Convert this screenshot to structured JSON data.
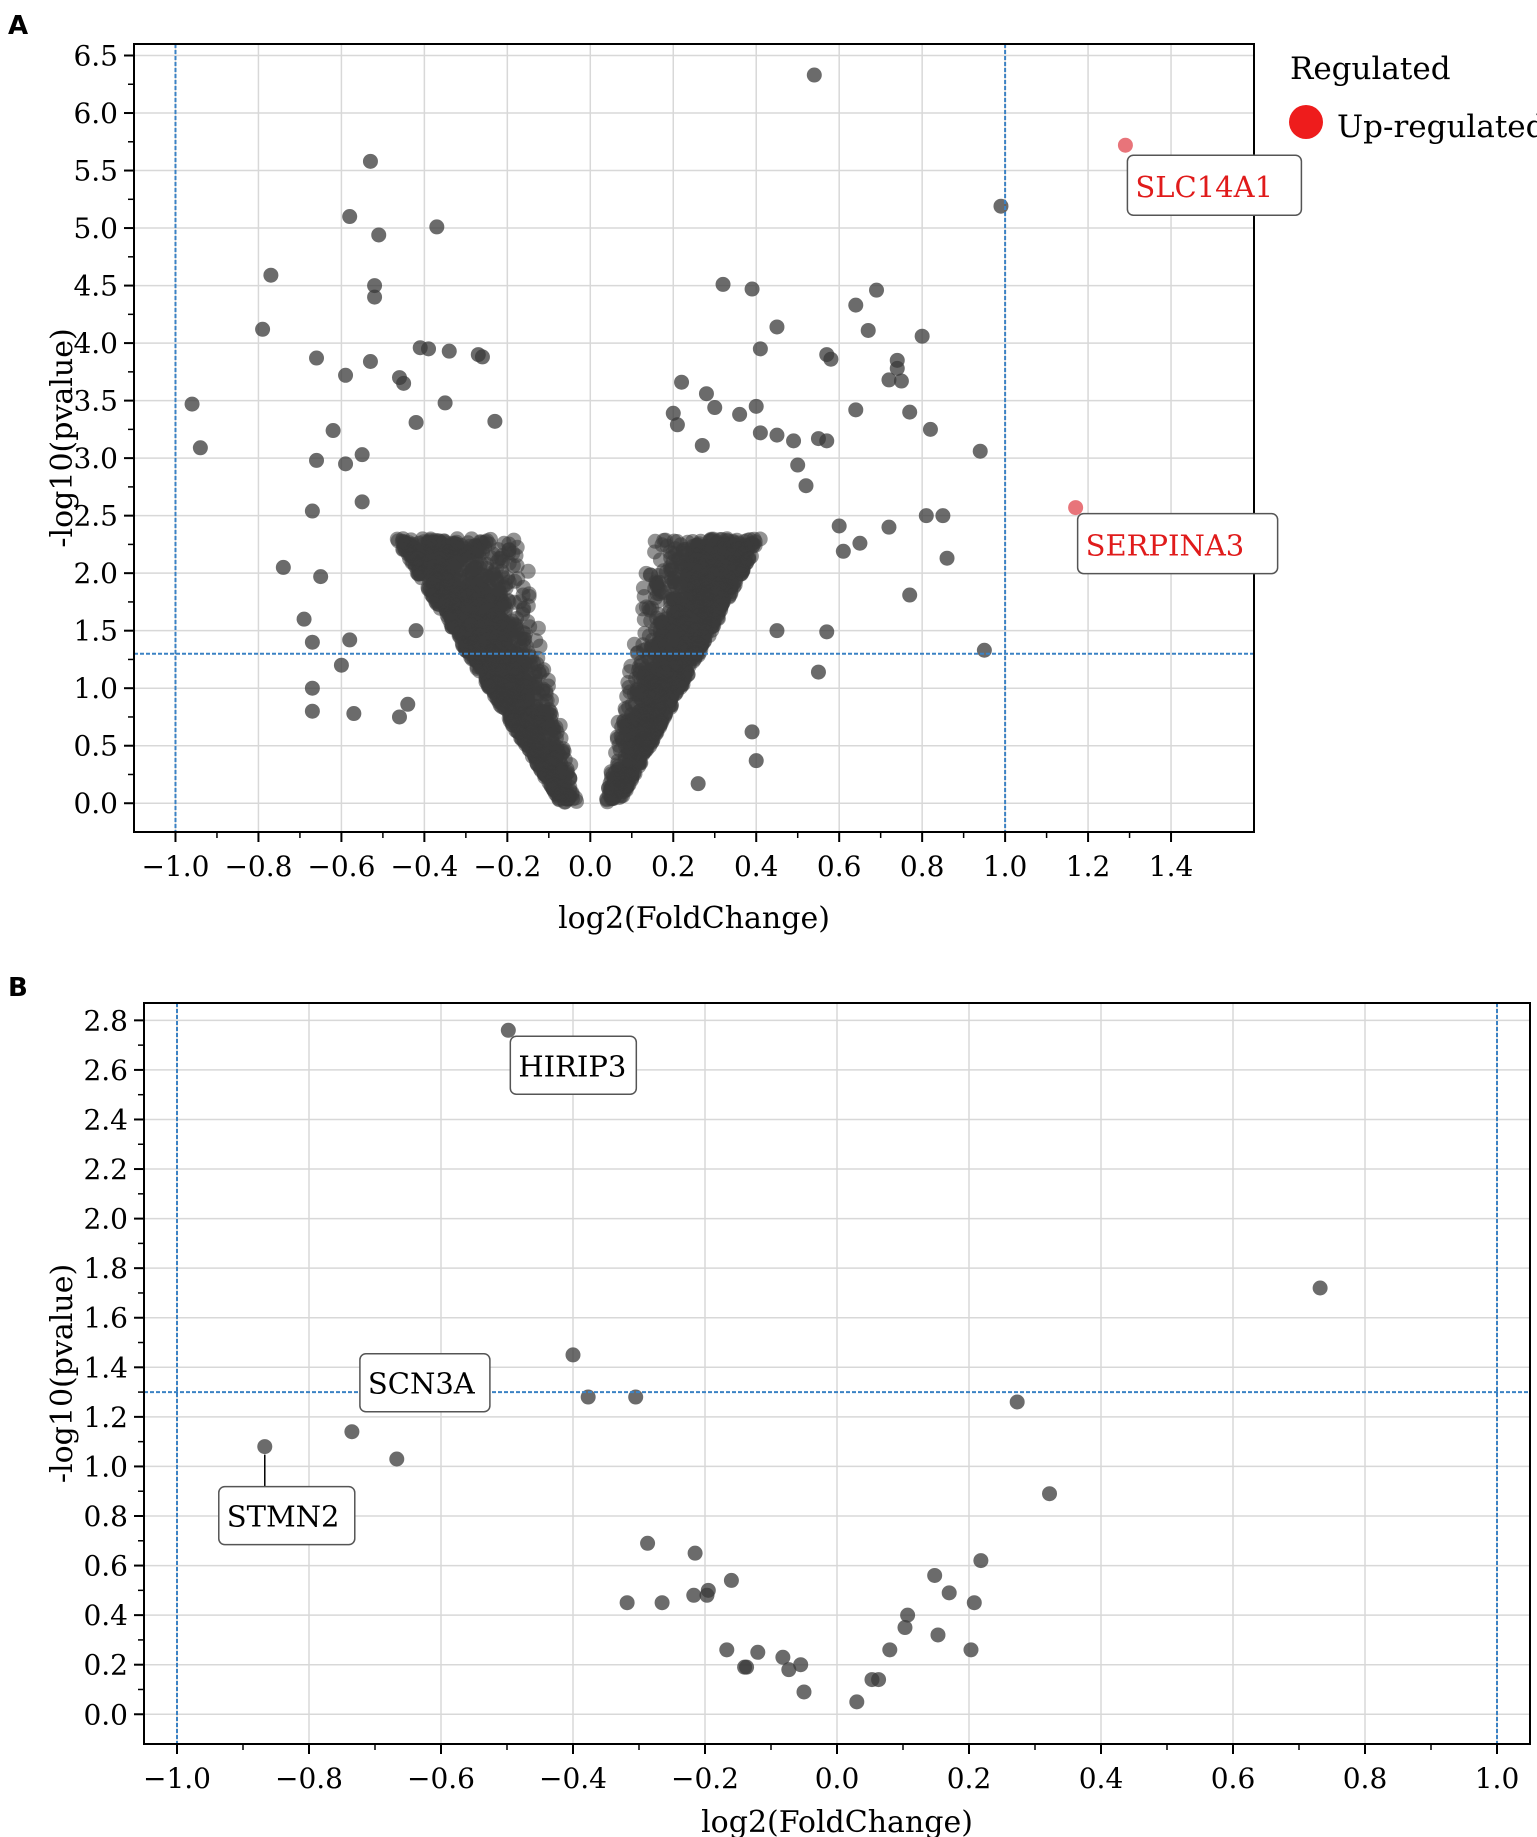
{
  "panels": [
    {
      "letter": "A"
    },
    {
      "letter": "B"
    }
  ],
  "colors": {
    "point": "#3a3a3a",
    "highlight": "#e8747a",
    "legend_marker": "#ee1c1c",
    "threshold_line": "#3b82c4",
    "grid": "#d8d8d8",
    "annotation_highlight_text": "#e01b1b"
  },
  "chart_data": [
    {
      "type": "scatter",
      "title": "",
      "xlabel": "log2(FoldChange)",
      "ylabel": "-log10(pvalue)",
      "xlim": [
        -1.1,
        1.6
      ],
      "ylim": [
        -0.25,
        6.6
      ],
      "xticks": [
        "−1.0",
        "−0.8",
        "−0.6",
        "−0.4",
        "−0.2",
        "0.0",
        "0.2",
        "0.4",
        "0.6",
        "0.8",
        "1.0",
        "1.2",
        "1.4"
      ],
      "yticks": [
        "0.0",
        "0.5",
        "1.0",
        "1.5",
        "2.0",
        "2.5",
        "3.0",
        "3.5",
        "4.0",
        "4.5",
        "5.0",
        "5.5",
        "6.0",
        "6.5"
      ],
      "grid": true,
      "thresholds": {
        "x": [
          -1.0,
          1.0
        ],
        "y": [
          1.3
        ]
      },
      "legend": {
        "title": "Regulated",
        "entries": [
          {
            "label": "Up-regulated"
          }
        ],
        "placement": "upper-right-outside"
      },
      "dense_cloud": {
        "description_free": true,
        "x_left_max": -0.42,
        "x_right_max": 0.36,
        "y_max": 2.3,
        "count": 2600
      },
      "points": [
        [
          -0.96,
          3.47
        ],
        [
          -0.94,
          3.09
        ],
        [
          -0.79,
          4.12
        ],
        [
          -0.77,
          4.59
        ],
        [
          -0.74,
          2.05
        ],
        [
          -0.69,
          1.6
        ],
        [
          -0.67,
          1.0
        ],
        [
          -0.67,
          0.8
        ],
        [
          -0.67,
          1.4
        ],
        [
          -0.67,
          2.54
        ],
        [
          -0.66,
          2.98
        ],
        [
          -0.66,
          3.87
        ],
        [
          -0.65,
          1.97
        ],
        [
          -0.62,
          3.24
        ],
        [
          -0.6,
          1.2
        ],
        [
          -0.59,
          2.95
        ],
        [
          -0.59,
          3.72
        ],
        [
          -0.58,
          5.1
        ],
        [
          -0.58,
          1.42
        ],
        [
          -0.57,
          0.78
        ],
        [
          -0.55,
          3.03
        ],
        [
          -0.55,
          2.62
        ],
        [
          -0.53,
          3.84
        ],
        [
          -0.53,
          5.58
        ],
        [
          -0.52,
          4.5
        ],
        [
          -0.52,
          4.4
        ],
        [
          -0.51,
          4.94
        ],
        [
          -0.46,
          3.7
        ],
        [
          -0.45,
          3.65
        ],
        [
          -0.42,
          3.31
        ],
        [
          -0.41,
          3.96
        ],
        [
          -0.37,
          5.01
        ],
        [
          -0.39,
          3.95
        ],
        [
          -0.35,
          3.48
        ],
        [
          -0.34,
          3.93
        ],
        [
          -0.27,
          3.9
        ],
        [
          -0.26,
          3.88
        ],
        [
          -0.23,
          3.32
        ],
        [
          0.2,
          3.39
        ],
        [
          0.21,
          3.29
        ],
        [
          0.22,
          3.66
        ],
        [
          0.27,
          3.11
        ],
        [
          0.28,
          3.56
        ],
        [
          0.3,
          3.44
        ],
        [
          0.32,
          4.51
        ],
        [
          0.36,
          3.38
        ],
        [
          0.39,
          4.47
        ],
        [
          0.41,
          3.95
        ],
        [
          0.4,
          3.45
        ],
        [
          0.41,
          3.22
        ],
        [
          0.45,
          4.14
        ],
        [
          0.45,
          3.2
        ],
        [
          0.49,
          3.15
        ],
        [
          0.5,
          2.94
        ],
        [
          0.52,
          2.76
        ],
        [
          0.55,
          3.17
        ],
        [
          0.57,
          3.9
        ],
        [
          0.58,
          3.86
        ],
        [
          0.57,
          3.15
        ],
        [
          0.54,
          6.33
        ],
        [
          0.6,
          2.41
        ],
        [
          0.61,
          2.19
        ],
        [
          0.64,
          3.42
        ],
        [
          0.64,
          4.33
        ],
        [
          0.65,
          2.26
        ],
        [
          0.67,
          4.11
        ],
        [
          0.69,
          4.46
        ],
        [
          0.72,
          3.68
        ],
        [
          0.72,
          2.4
        ],
        [
          0.74,
          3.78
        ],
        [
          0.74,
          3.85
        ],
        [
          0.75,
          3.67
        ],
        [
          0.77,
          3.4
        ],
        [
          0.8,
          4.06
        ],
        [
          0.82,
          3.25
        ],
        [
          0.81,
          2.5
        ],
        [
          0.85,
          2.5
        ],
        [
          0.86,
          2.13
        ],
        [
          0.77,
          1.81
        ],
        [
          0.94,
          3.06
        ],
        [
          0.95,
          1.33
        ],
        [
          0.99,
          5.19
        ],
        [
          0.57,
          1.49
        ],
        [
          0.55,
          1.14
        ],
        [
          0.45,
          1.5
        ],
        [
          0.4,
          0.37
        ],
        [
          0.39,
          0.62
        ],
        [
          0.26,
          0.17
        ],
        [
          -0.42,
          1.5
        ],
        [
          -0.44,
          0.86
        ],
        [
          -0.46,
          0.75
        ]
      ],
      "highlights": [
        {
          "label": "SLC14A1",
          "x": 1.29,
          "y": 5.72
        },
        {
          "label": "SERPINA3",
          "x": 1.17,
          "y": 2.57
        }
      ]
    },
    {
      "type": "scatter",
      "title": "",
      "xlabel": "log2(FoldChange)",
      "ylabel": "-log10(pvalue)",
      "xlim": [
        -1.05,
        1.05
      ],
      "ylim": [
        -0.12,
        2.87
      ],
      "xticks": [
        "−1.0",
        "−0.8",
        "−0.6",
        "−0.4",
        "−0.2",
        "0.0",
        "0.2",
        "0.4",
        "0.6",
        "0.8",
        "1.0"
      ],
      "yticks": [
        "0.0",
        "0.2",
        "0.4",
        "0.6",
        "0.8",
        "1.0",
        "1.2",
        "1.4",
        "1.6",
        "1.8",
        "2.0",
        "2.2",
        "2.4",
        "2.6",
        "2.8"
      ],
      "grid": true,
      "thresholds": {
        "x": [
          -1.0,
          1.0
        ],
        "y": [
          1.3
        ]
      },
      "points": [
        [
          -0.867,
          1.08
        ],
        [
          -0.735,
          1.14
        ],
        [
          -0.667,
          1.03
        ],
        [
          -0.498,
          2.76
        ],
        [
          -0.4,
          1.45
        ],
        [
          -0.377,
          1.28
        ],
        [
          -0.305,
          1.28
        ],
        [
          -0.287,
          0.69
        ],
        [
          -0.318,
          0.45
        ],
        [
          -0.265,
          0.45
        ],
        [
          -0.215,
          0.65
        ],
        [
          -0.217,
          0.48
        ],
        [
          -0.197,
          0.48
        ],
        [
          -0.195,
          0.5
        ],
        [
          -0.16,
          0.54
        ],
        [
          -0.167,
          0.26
        ],
        [
          -0.14,
          0.19
        ],
        [
          -0.137,
          0.19
        ],
        [
          -0.12,
          0.25
        ],
        [
          -0.082,
          0.23
        ],
        [
          -0.073,
          0.18
        ],
        [
          -0.055,
          0.2
        ],
        [
          -0.05,
          0.09
        ],
        [
          0.03,
          0.05
        ],
        [
          0.053,
          0.14
        ],
        [
          0.063,
          0.14
        ],
        [
          0.08,
          0.26
        ],
        [
          0.103,
          0.35
        ],
        [
          0.107,
          0.4
        ],
        [
          0.148,
          0.56
        ],
        [
          0.153,
          0.32
        ],
        [
          0.17,
          0.49
        ],
        [
          0.203,
          0.26
        ],
        [
          0.208,
          0.45
        ],
        [
          0.218,
          0.62
        ],
        [
          0.273,
          1.26
        ],
        [
          0.322,
          0.89
        ],
        [
          0.732,
          1.72
        ]
      ],
      "annotations": [
        {
          "label": "HIRIP3",
          "x": -0.498,
          "y": 2.76
        },
        {
          "label": "SCN3A",
          "x": -0.735,
          "y": 1.14
        },
        {
          "label": "STMN2",
          "x": -0.867,
          "y": 1.08
        }
      ]
    }
  ]
}
